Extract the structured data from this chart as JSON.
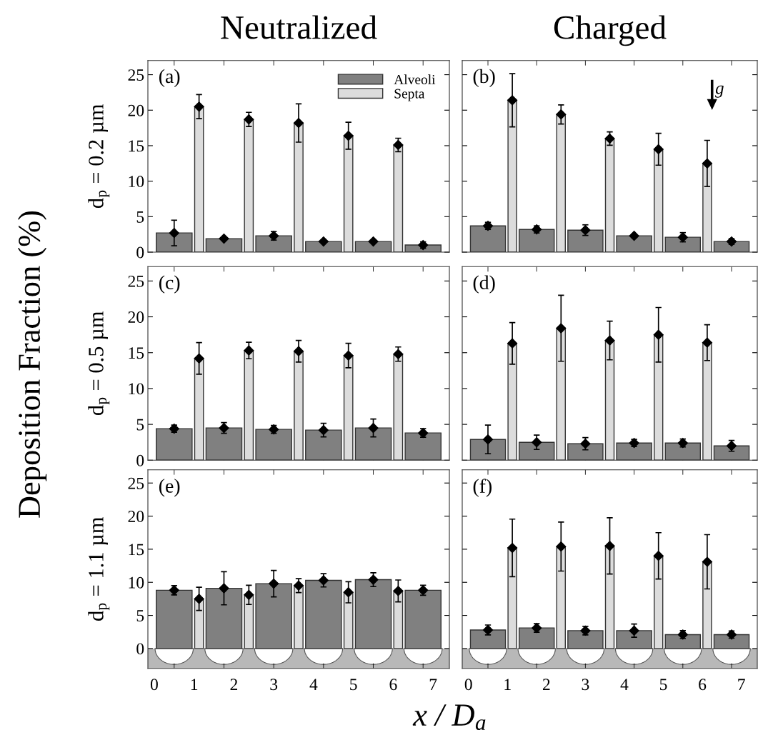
{
  "chart_data": [
    {
      "type": "bar",
      "title": "Neutralized",
      "ylabel": "d$_{p}$ = 0.2 µm",
      "annotations": [
        "(a)"
      ],
      "xlim": [
        -0.16,
        7.41
      ],
      "xticks": [
        0,
        1,
        2,
        3,
        4,
        5,
        6,
        7,
        {
          "value": 0.5,
          "label": null
        },
        {
          "value": 1.75,
          "label": null
        },
        {
          "value": 3.0,
          "label": null
        },
        {
          "value": 4.25,
          "label": null
        },
        {
          "value": 5.5,
          "label": null
        },
        {
          "value": 6.75,
          "label": null
        }
      ],
      "ylim": [
        0,
        27
      ],
      "yticks": [
        0,
        5,
        10,
        15,
        20,
        25
      ],
      "tick_labels": "y",
      "legend": "top right",
      "marker": "diamond",
      "series": [
        {
          "name": "Alveoli",
          "color": "#808080",
          "x": [
            0.5,
            1.75,
            3.0,
            4.25,
            5.5,
            6.75
          ],
          "values": [
            2.7,
            1.9,
            2.3,
            1.5,
            1.5,
            1.0
          ]
        },
        {
          "name": "Septa",
          "color": "#dcdcdc",
          "x": [
            1.125,
            2.375,
            3.625,
            4.875,
            6.125
          ],
          "values": [
            20.5,
            18.7,
            18.2,
            16.4,
            15.1
          ]
        },
        {
          "type": "scatter",
          "color": "#000000",
          "x": [
            0.5,
            1.75,
            3.0,
            4.25,
            5.5,
            6.75
          ],
          "values": [
            2.7,
            1.9,
            2.3,
            1.5,
            1.5,
            1.0
          ],
          "errors": [
            1.8,
            0.2,
            0.6,
            0.15,
            0.15,
            0.45
          ]
        },
        {
          "type": "scatter",
          "color": "#000000",
          "x": [
            1.125,
            2.375,
            3.625,
            4.875,
            6.125
          ],
          "values": [
            20.5,
            18.7,
            18.2,
            16.4,
            15.1
          ],
          "errors": [
            1.7,
            1.0,
            2.7,
            1.9,
            0.95
          ]
        }
      ]
    },
    {
      "type": "bar",
      "title": "Charged",
      "annotations": [
        "(b)",
        "g"
      ],
      "xlim": [
        -0.16,
        7.41
      ],
      "xticks": [
        0,
        1,
        2,
        3,
        4,
        5,
        6,
        7,
        {
          "value": 0.5,
          "label": null
        },
        {
          "value": 1.75,
          "label": null
        },
        {
          "value": 3.0,
          "label": null
        },
        {
          "value": 4.25,
          "label": null
        },
        {
          "value": 5.5,
          "label": null
        },
        {
          "value": 6.75,
          "label": null
        }
      ],
      "ylim": [
        0,
        27
      ],
      "yticks": [
        0,
        5,
        10,
        15,
        20,
        25
      ],
      "tick_labels": false,
      "marker": "diamond",
      "series": [
        {
          "color": "#808080",
          "x": [
            0.5,
            1.75,
            3.0,
            4.25,
            5.5,
            6.75
          ],
          "values": [
            3.7,
            3.2,
            3.1,
            2.3,
            2.1,
            1.5
          ]
        },
        {
          "color": "#dcdcdc",
          "x": [
            1.125,
            2.375,
            3.625,
            4.875,
            6.125
          ],
          "values": [
            21.4,
            19.4,
            16.0,
            14.5,
            12.5
          ]
        },
        {
          "type": "scatter",
          "color": "#000000",
          "x": [
            0.5,
            1.75,
            3.0,
            4.25,
            5.5,
            6.75
          ],
          "values": [
            3.7,
            3.2,
            3.1,
            2.3,
            2.1,
            1.5
          ],
          "errors": [
            0.5,
            0.5,
            0.75,
            0.25,
            0.65,
            0.4
          ]
        },
        {
          "type": "scatter",
          "color": "#000000",
          "x": [
            1.125,
            2.375,
            3.625,
            4.875,
            6.125
          ],
          "values": [
            21.4,
            19.4,
            16.0,
            14.5,
            12.5
          ],
          "errors": [
            3.75,
            1.35,
            0.95,
            2.25,
            3.25
          ]
        }
      ]
    },
    {
      "type": "bar",
      "ylabel": "d$_{p}$ = 0.5 µm",
      "annotations": [
        "(c)",
        "Deposition Fraction (%)"
      ],
      "xlim": [
        -0.16,
        7.41
      ],
      "xticks": [
        0,
        1,
        2,
        3,
        4,
        5,
        6,
        7,
        {
          "value": 0.5,
          "label": null
        },
        {
          "value": 1.75,
          "label": null
        },
        {
          "value": 3.0,
          "label": null
        },
        {
          "value": 4.25,
          "label": null
        },
        {
          "value": 5.5,
          "label": null
        },
        {
          "value": 6.75,
          "label": null
        }
      ],
      "ylim": [
        0,
        27
      ],
      "yticks": [
        0,
        5,
        10,
        15,
        20,
        25
      ],
      "tick_labels": "y",
      "marker": "diamond",
      "series": [
        {
          "color": "#808080",
          "x": [
            0.5,
            1.75,
            3.0,
            4.25,
            5.5,
            6.75
          ],
          "values": [
            4.4,
            4.5,
            4.3,
            4.2,
            4.5,
            3.8
          ]
        },
        {
          "color": "#dcdcdc",
          "x": [
            1.125,
            2.375,
            3.625,
            4.875,
            6.125
          ],
          "values": [
            14.2,
            15.3,
            15.2,
            14.6,
            14.8
          ]
        },
        {
          "type": "scatter",
          "color": "#000000",
          "x": [
            0.5,
            1.75,
            3.0,
            4.25,
            5.5,
            6.75
          ],
          "values": [
            4.4,
            4.5,
            4.3,
            4.2,
            4.5,
            3.8
          ],
          "errors": [
            0.5,
            0.75,
            0.55,
            0.95,
            1.25,
            0.6
          ]
        },
        {
          "type": "scatter",
          "color": "#000000",
          "x": [
            1.125,
            2.375,
            3.625,
            4.875,
            6.125
          ],
          "values": [
            14.2,
            15.3,
            15.2,
            14.6,
            14.8
          ],
          "errors": [
            2.2,
            1.15,
            1.5,
            1.7,
            1.0
          ]
        }
      ]
    },
    {
      "type": "bar",
      "annotations": [
        "(d)"
      ],
      "xlim": [
        -0.16,
        7.41
      ],
      "xticks": [
        0,
        1,
        2,
        3,
        4,
        5,
        6,
        7,
        {
          "value": 0.5,
          "label": null
        },
        {
          "value": 1.75,
          "label": null
        },
        {
          "value": 3.0,
          "label": null
        },
        {
          "value": 4.25,
          "label": null
        },
        {
          "value": 5.5,
          "label": null
        },
        {
          "value": 6.75,
          "label": null
        }
      ],
      "ylim": [
        0,
        27
      ],
      "yticks": [
        0,
        5,
        10,
        15,
        20,
        25
      ],
      "tick_labels": false,
      "marker": "diamond",
      "series": [
        {
          "color": "#808080",
          "x": [
            0.5,
            1.75,
            3.0,
            4.25,
            5.5,
            6.75
          ],
          "values": [
            2.9,
            2.5,
            2.3,
            2.4,
            2.4,
            2.0
          ]
        },
        {
          "color": "#dcdcdc",
          "x": [
            1.125,
            2.375,
            3.625,
            4.875,
            6.125
          ],
          "values": [
            16.3,
            18.4,
            16.7,
            17.5,
            16.4
          ]
        },
        {
          "type": "scatter",
          "color": "#000000",
          "x": [
            0.5,
            1.75,
            3.0,
            4.25,
            5.5,
            6.75
          ],
          "values": [
            2.9,
            2.5,
            2.3,
            2.4,
            2.4,
            2.0
          ],
          "errors": [
            2.0,
            1.0,
            0.85,
            0.5,
            0.55,
            0.75
          ]
        },
        {
          "type": "scatter",
          "color": "#000000",
          "x": [
            1.125,
            2.375,
            3.625,
            4.875,
            6.125
          ],
          "values": [
            16.3,
            18.4,
            16.7,
            17.5,
            16.4
          ],
          "errors": [
            2.9,
            4.6,
            2.7,
            3.8,
            2.5
          ]
        }
      ]
    },
    {
      "type": "bar",
      "ylabel": "d$_{p}$ = 1.1 µm",
      "annotations": [
        "(e)",
        "x / D$_{a}$"
      ],
      "xlim": [
        -0.16,
        7.41
      ],
      "xticks": [
        0,
        1,
        2,
        3,
        4,
        5,
        6,
        7,
        {
          "value": 0.5,
          "label": null
        },
        {
          "value": 1.75,
          "label": null
        },
        {
          "value": 3.0,
          "label": null
        },
        {
          "value": 4.25,
          "label": null
        },
        {
          "value": 5.5,
          "label": null
        },
        {
          "value": 6.75,
          "label": null
        }
      ],
      "ylim": [
        -3,
        27
      ],
      "yticks": [
        0,
        5,
        10,
        15,
        20,
        25
      ],
      "marker": "diamond",
      "series": [
        {
          "color": "#808080",
          "x": [
            0.5,
            1.75,
            3.0,
            4.25,
            5.5,
            6.75
          ],
          "values": [
            8.8,
            9.1,
            9.8,
            10.3,
            10.4,
            8.8
          ]
        },
        {
          "color": "#dcdcdc",
          "x": [
            1.125,
            2.375,
            3.625,
            4.875,
            6.125
          ],
          "values": [
            7.5,
            8.1,
            9.5,
            8.5,
            8.7
          ]
        },
        {
          "type": "scatter",
          "color": "#000000",
          "x": [
            0.5,
            1.75,
            3.0,
            4.25,
            5.5,
            6.75
          ],
          "values": [
            8.8,
            9.1,
            9.8,
            10.3,
            10.4,
            8.8
          ],
          "errors": [
            0.7,
            2.5,
            2.0,
            1.0,
            1.05,
            0.75
          ]
        },
        {
          "type": "scatter",
          "color": "#000000",
          "x": [
            1.125,
            2.375,
            3.625,
            4.875,
            6.125
          ],
          "values": [
            7.5,
            8.1,
            9.5,
            8.5,
            8.7
          ],
          "errors": [
            1.75,
            1.45,
            1.05,
            1.6,
            1.65
          ]
        }
      ]
    },
    {
      "type": "bar",
      "annotations": [
        "(f)"
      ],
      "xlim": [
        -0.16,
        7.41
      ],
      "xticks": [
        0,
        1,
        2,
        3,
        4,
        5,
        6,
        7,
        {
          "value": 0.5,
          "label": null
        },
        {
          "value": 1.75,
          "label": null
        },
        {
          "value": 3.0,
          "label": null
        },
        {
          "value": 4.25,
          "label": null
        },
        {
          "value": 5.5,
          "label": null
        },
        {
          "value": 6.75,
          "label": null
        }
      ],
      "ylim": [
        -3,
        27
      ],
      "yticks": [
        0,
        5,
        10,
        15,
        20,
        25
      ],
      "tick_labels": "x",
      "marker": "diamond",
      "series": [
        {
          "color": "#808080",
          "x": [
            0.5,
            1.75,
            3.0,
            4.25,
            5.5,
            6.75
          ],
          "values": [
            2.8,
            3.1,
            2.7,
            2.7,
            2.1,
            2.1
          ]
        },
        {
          "color": "#dcdcdc",
          "x": [
            1.125,
            2.375,
            3.625,
            4.875,
            6.125
          ],
          "values": [
            15.2,
            15.4,
            15.5,
            14.0,
            13.1
          ]
        },
        {
          "type": "scatter",
          "color": "#000000",
          "x": [
            0.5,
            1.75,
            3.0,
            4.25,
            5.5,
            6.75
          ],
          "values": [
            2.8,
            3.1,
            2.7,
            2.7,
            2.1,
            2.1
          ],
          "errors": [
            0.75,
            0.65,
            0.65,
            1.0,
            0.6,
            0.55
          ]
        },
        {
          "type": "scatter",
          "color": "#000000",
          "x": [
            1.125,
            2.375,
            3.625,
            4.875,
            6.125
          ],
          "values": [
            15.2,
            15.4,
            15.5,
            14.0,
            13.1
          ],
          "errors": [
            4.35,
            3.7,
            4.25,
            3.5,
            4.1
          ]
        }
      ]
    }
  ]
}
